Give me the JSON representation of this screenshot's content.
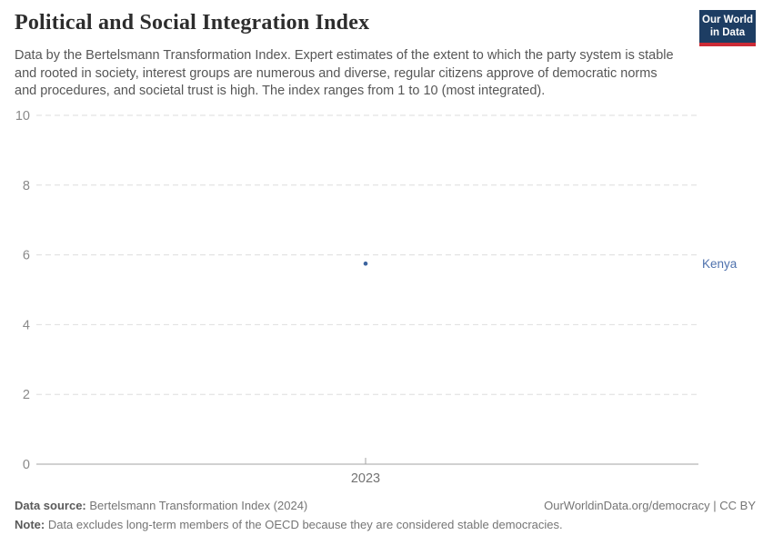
{
  "header": {
    "title": "Political and Social Integration Index",
    "subtitle": "Data by the Bertelsmann Transformation Index. Expert estimates of the extent to which the party system is stable and rooted in society, interest groups are numerous and diverse, regular citizens approve of democratic norms and procedures, and societal trust is high. The index ranges from 1 to 10 (most integrated).",
    "logo": {
      "line1": "Our World",
      "line2": "in Data",
      "bg_color": "#1d3d63",
      "bar_color": "#cc2b36",
      "text_color": "#ffffff"
    }
  },
  "chart_data": {
    "type": "scatter",
    "title": "Political and Social Integration Index",
    "x": [
      "2023"
    ],
    "series": [
      {
        "name": "Kenya",
        "values": [
          5.75
        ],
        "point_color": "#3d649f",
        "label_color": "#4e71ad"
      }
    ],
    "xlabel": "",
    "ylabel": "",
    "ylim": [
      0,
      10
    ],
    "yticks": [
      0,
      2,
      4,
      6,
      8,
      10
    ],
    "grid": "horizontal dashed gridlines, solid zero baseline",
    "legend": "entity name labeled to the right of the point",
    "colors": {
      "gridline": "#dedede",
      "axis": "#a3a3a3",
      "y_tick_label": "#8a8a8a",
      "x_tick_label": "#737373"
    }
  },
  "footer": {
    "source_label": "Data source:",
    "source_text": " Bertelsmann Transformation Index (2024)",
    "license_text": "OurWorldinData.org/democracy | CC BY",
    "note_label": "Note:",
    "note_text": " Data excludes long-term members of the OECD because they are considered stable democracies."
  }
}
